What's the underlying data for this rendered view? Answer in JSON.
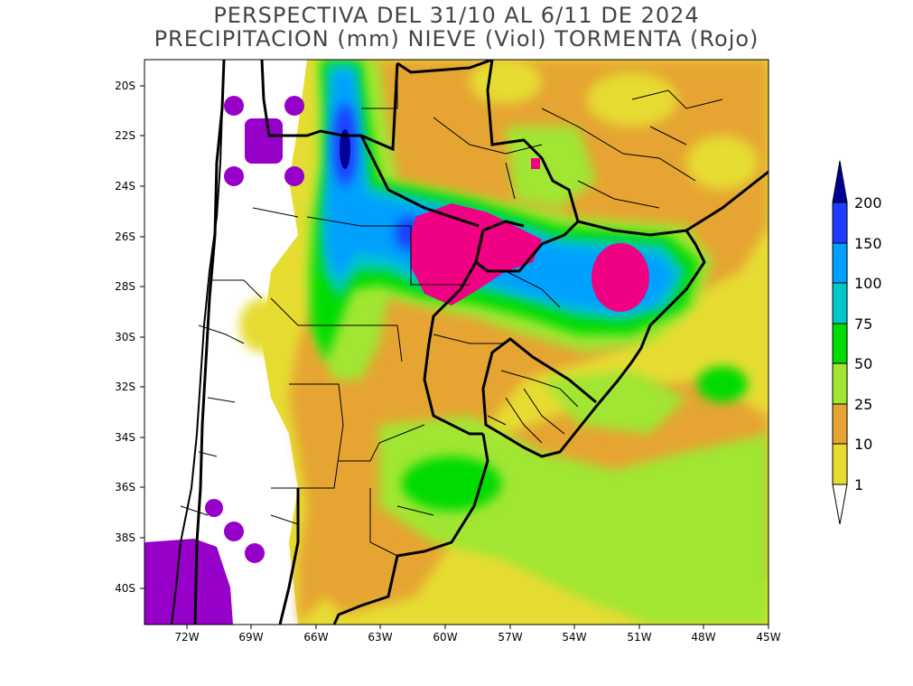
{
  "title_line1": "PERSPECTIVA DEL 31/10 AL 6/11 DE 2024",
  "title_line2": "PRECIPITACION (mm) NIEVE (Viol) TORMENTA (Rojo)",
  "lat_labels": [
    "20S",
    "22S",
    "24S",
    "26S",
    "28S",
    "30S",
    "32S",
    "34S",
    "36S",
    "38S",
    "40S"
  ],
  "lon_labels": [
    "72W",
    "69W",
    "66W",
    "63W",
    "60W",
    "57W",
    "54W",
    "51W",
    "48W",
    "45W"
  ],
  "legend": {
    "levels": [
      "200",
      "150",
      "100",
      "75",
      "50",
      "25",
      "10",
      "1"
    ],
    "colors": [
      "#000096",
      "#1e3cff",
      "#00a0ff",
      "#00c8c8",
      "#00dc00",
      "#a0e632",
      "#e6a532",
      "#e6dc32"
    ],
    "snow_color": "#9600c8",
    "storm_color": "#f00082"
  }
}
